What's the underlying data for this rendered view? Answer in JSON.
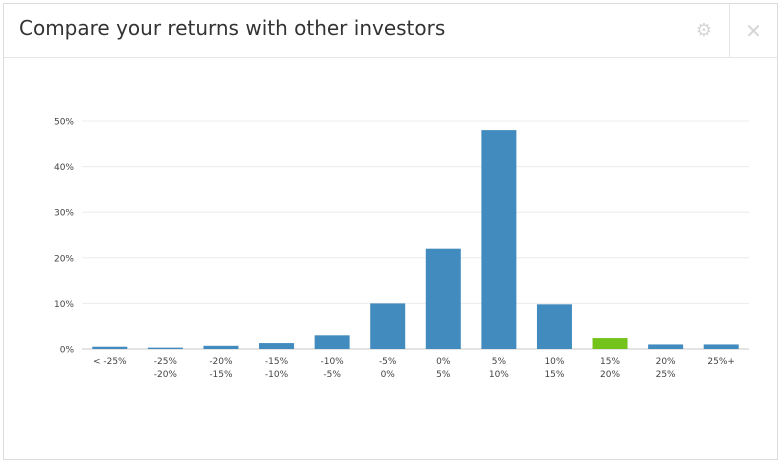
{
  "dialog": {
    "title": "Compare your returns with other investors",
    "settings_icon": "gear-icon",
    "close_icon": "close-icon"
  },
  "chart_data": {
    "type": "bar",
    "categories": [
      [
        "< -25%",
        ""
      ],
      [
        "-25%",
        "-20%"
      ],
      [
        "-20%",
        "-15%"
      ],
      [
        "-15%",
        "-10%"
      ],
      [
        "-10%",
        "-5%"
      ],
      [
        "-5%",
        "0%"
      ],
      [
        "0%",
        "5%"
      ],
      [
        "5%",
        "10%"
      ],
      [
        "10%",
        "15%"
      ],
      [
        "15%",
        "20%"
      ],
      [
        "20%",
        "25%"
      ],
      [
        "25%+",
        ""
      ]
    ],
    "values": [
      0.5,
      0.3,
      0.7,
      1.3,
      3.0,
      10.0,
      22.0,
      48.0,
      9.8,
      2.4,
      1.0,
      1.0
    ],
    "highlight_index": 9,
    "colors": {
      "bar": "#428bbf",
      "highlight": "#73c31a",
      "grid": "#ececec",
      "axis": "#c8c8c8"
    },
    "ylim": [
      0,
      50
    ],
    "yticks": [
      0,
      10,
      20,
      30,
      40,
      50
    ],
    "ytick_labels": [
      "0%",
      "10%",
      "20%",
      "30%",
      "40%",
      "50%"
    ],
    "title": "",
    "xlabel": "",
    "ylabel": "",
    "grid": true,
    "legend": "none"
  }
}
